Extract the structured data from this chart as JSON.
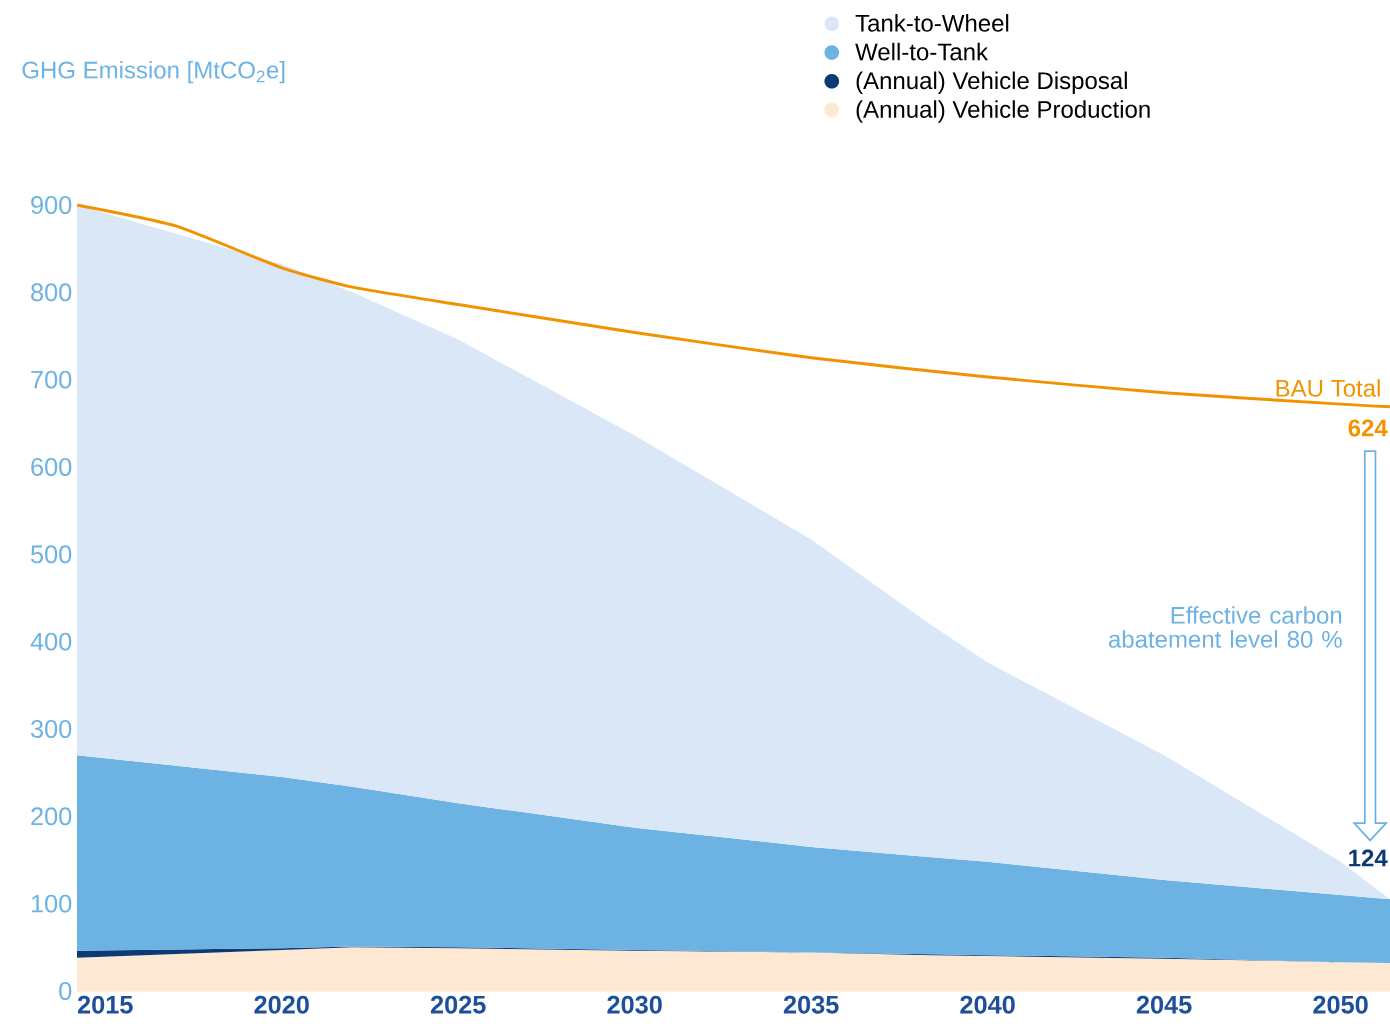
{
  "chart_data": {
    "type": "area",
    "stacked": true,
    "ylabel": "GHG Emission [MtCO$_{2}$e]",
    "x": [
      2014.2,
      2020,
      2022,
      2025,
      2030,
      2035,
      2038.4,
      2040,
      2045,
      2050,
      2051.4
    ],
    "xlim": [
      2014.2,
      2051.4
    ],
    "xticks": [
      2015,
      2020,
      2025,
      2030,
      2035,
      2040,
      2045,
      2050
    ],
    "ylim": [
      0,
      900
    ],
    "yticks": [
      0,
      100,
      200,
      300,
      400,
      500,
      600,
      700,
      800,
      900
    ],
    "legend": "top",
    "series": [
      {
        "name": "(Annual) Vehicle Production",
        "color": "#fde8d3",
        "values": [
          38,
          47,
          50,
          49,
          46,
          44,
          41,
          40,
          37,
          33,
          32
        ]
      },
      {
        "name": "(Annual) Vehicle Disposal",
        "color": "#0b3a74",
        "values": [
          8,
          2,
          1,
          1,
          1,
          0,
          1,
          1,
          1,
          0,
          0
        ]
      },
      {
        "name": "Well-to-Tank",
        "color": "#6cb2e2",
        "values": [
          224,
          196,
          183,
          165,
          140,
          121,
          111,
          107,
          89,
          77,
          73
        ]
      },
      {
        "name": "Tank-to-Wheel",
        "color": "#d9e7f7",
        "values": [
          630,
          587,
          566,
          531,
          449,
          352,
          266,
          228,
          143,
          38,
          0
        ]
      },
      {
        "name": "BAU Total",
        "type": "line",
        "color": "#f39200",
        "x": [
          2014.2,
          2017,
          2020,
          2022,
          2025,
          2030,
          2035,
          2040,
          2045,
          2050,
          2051.4
        ],
        "values": [
          900,
          876,
          828,
          806,
          786,
          754,
          725,
          703,
          685,
          672,
          669
        ]
      }
    ],
    "annotations": [
      "624",
      "Effective carbon abatement level 80 %",
      "124"
    ]
  }
}
